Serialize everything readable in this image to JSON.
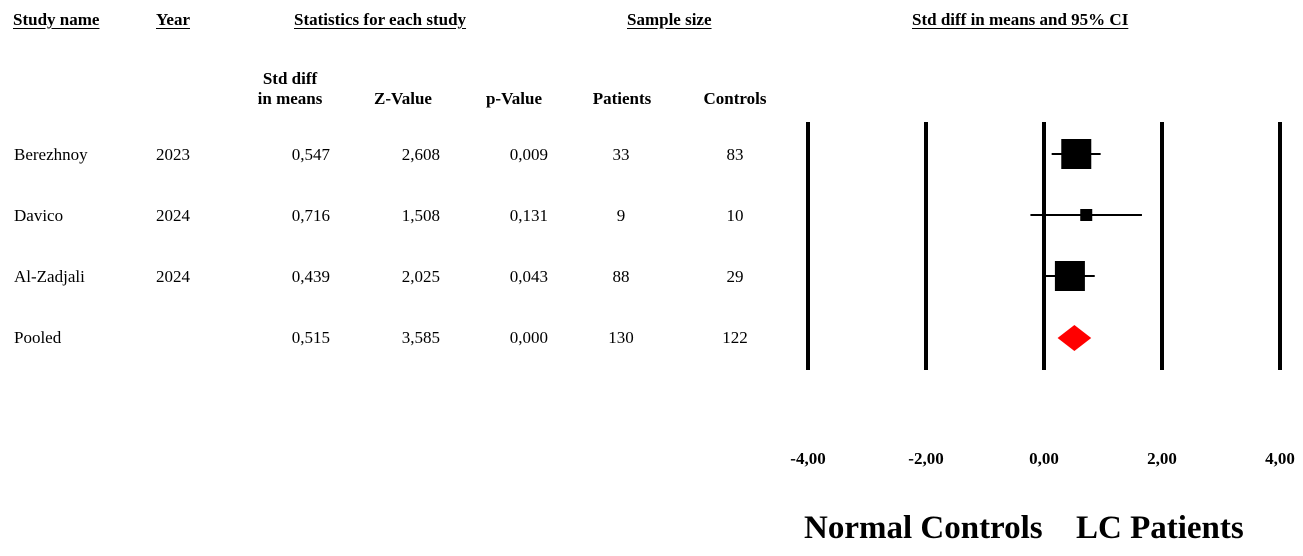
{
  "headers": {
    "study_name": "Study name",
    "year": "Year",
    "stats": "Statistics for each study",
    "sample": "Sample size",
    "ci": "Std diff in means and 95% CI"
  },
  "subheaders": {
    "smd_line1": "Std diff",
    "smd_line2": "in means",
    "z": "Z-Value",
    "p": "p-Value",
    "patients": "Patients",
    "controls": "Controls"
  },
  "rows": [
    {
      "name": "Berezhnoy",
      "year": "2023",
      "smd": "0,547",
      "z": "2,608",
      "p": "0,009",
      "patients": "33",
      "controls": "83"
    },
    {
      "name": "Davico",
      "year": "2024",
      "smd": "0,716",
      "z": "1,508",
      "p": "0,131",
      "patients": "9",
      "controls": "10"
    },
    {
      "name": "Al-Zadjali",
      "year": "2024",
      "smd": "0,439",
      "z": "2,025",
      "p": "0,043",
      "patients": "88",
      "controls": "29"
    },
    {
      "name": "Pooled",
      "year": "",
      "smd": "0,515",
      "z": "3,585",
      "p": "0,000",
      "patients": "130",
      "controls": "122"
    }
  ],
  "axis": {
    "ticks": [
      -4,
      -2,
      0,
      2,
      4
    ],
    "tick_labels": [
      "-4,00",
      "-2,00",
      "0,00",
      "2,00",
      "4,00"
    ],
    "left_label": "Normal Controls",
    "right_label": "LC Patients"
  },
  "chart_data": {
    "type": "forest",
    "xlim": [
      -4,
      4
    ],
    "vertical_lines_at": [
      -4,
      -2,
      0,
      2,
      4
    ],
    "colors": {
      "study": "#000000",
      "pooled": "#ff0000"
    },
    "studies": [
      {
        "name": "Berezhnoy",
        "estimate": 0.547,
        "ci_low": 0.13,
        "ci_high": 0.96,
        "weight": "large"
      },
      {
        "name": "Davico",
        "estimate": 0.716,
        "ci_low": -0.23,
        "ci_high": 1.66,
        "weight": "small"
      },
      {
        "name": "Al-Zadjali",
        "estimate": 0.439,
        "ci_low": 0.01,
        "ci_high": 0.86,
        "weight": "large"
      }
    ],
    "pooled": {
      "name": "Pooled",
      "estimate": 0.515,
      "ci_low": 0.23,
      "ci_high": 0.8
    }
  }
}
